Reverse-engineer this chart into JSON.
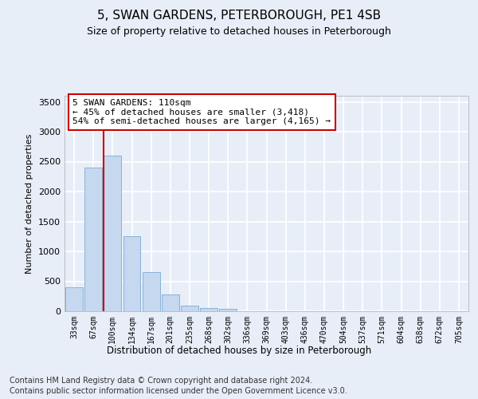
{
  "title": "5, SWAN GARDENS, PETERBOROUGH, PE1 4SB",
  "subtitle": "Size of property relative to detached houses in Peterborough",
  "xlabel": "Distribution of detached houses by size in Peterborough",
  "ylabel": "Number of detached properties",
  "categories": [
    "33sqm",
    "67sqm",
    "100sqm",
    "134sqm",
    "167sqm",
    "201sqm",
    "235sqm",
    "268sqm",
    "302sqm",
    "336sqm",
    "369sqm",
    "403sqm",
    "436sqm",
    "470sqm",
    "504sqm",
    "537sqm",
    "571sqm",
    "604sqm",
    "638sqm",
    "672sqm",
    "705sqm"
  ],
  "values": [
    400,
    2400,
    2600,
    1250,
    650,
    280,
    100,
    60,
    40,
    0,
    0,
    0,
    0,
    0,
    0,
    0,
    0,
    0,
    0,
    0,
    0
  ],
  "bar_color": "#c5d8f0",
  "bar_edge_color": "#7aaad0",
  "vline_color": "#cc0000",
  "annotation_text": "5 SWAN GARDENS: 110sqm\n← 45% of detached houses are smaller (3,418)\n54% of semi-detached houses are larger (4,165) →",
  "annotation_box_color": "#ffffff",
  "annotation_box_edge": "#cc0000",
  "ylim": [
    0,
    3600
  ],
  "yticks": [
    0,
    500,
    1000,
    1500,
    2000,
    2500,
    3000,
    3500
  ],
  "background_color": "#e8eef8",
  "plot_bg_color": "#e8eef8",
  "grid_color": "#ffffff",
  "footer_line1": "Contains HM Land Registry data © Crown copyright and database right 2024.",
  "footer_line2": "Contains public sector information licensed under the Open Government Licence v3.0.",
  "title_fontsize": 11,
  "subtitle_fontsize": 9,
  "footer_fontsize": 7
}
